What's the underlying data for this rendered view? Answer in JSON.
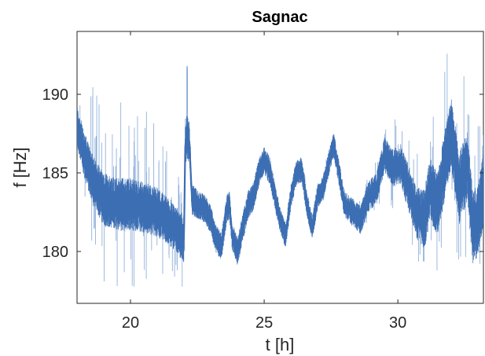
{
  "chart_data": {
    "type": "line",
    "title": "Sagnac",
    "xlabel": "t [h]",
    "ylabel": "f [Hz]",
    "xlim": [
      18,
      33.2
    ],
    "ylim": [
      176.7,
      194
    ],
    "xticks": [
      20,
      25,
      30
    ],
    "yticks": [
      180,
      185,
      190
    ],
    "grid": false,
    "series": [
      {
        "color": "#3c6eb3",
        "noise_color": "#7aa0d2",
        "x": [
          18.0,
          18.3,
          18.6,
          19.0,
          19.5,
          20.0,
          20.5,
          21.0,
          21.5,
          21.9,
          22.0,
          22.05,
          22.1,
          22.2,
          22.3,
          22.5,
          22.8,
          23.0,
          23.2,
          23.4,
          23.6,
          23.7,
          23.8,
          24.0,
          24.2,
          24.4,
          24.6,
          24.8,
          25.0,
          25.2,
          25.4,
          25.6,
          25.8,
          26.0,
          26.2,
          26.4,
          26.6,
          26.8,
          27.0,
          27.2,
          27.4,
          27.6,
          27.8,
          28.0,
          28.3,
          28.6,
          28.9,
          29.2,
          29.5,
          29.8,
          30.1,
          30.4,
          30.7,
          31.0,
          31.2,
          31.5,
          31.8,
          32.0,
          32.3,
          32.6,
          32.8,
          33.0,
          33.2
        ],
        "y": [
          188.0,
          186.0,
          184.5,
          183.3,
          183.0,
          183.0,
          182.8,
          182.5,
          181.8,
          181.0,
          180.8,
          187.0,
          187.2,
          187.0,
          183.3,
          183.0,
          182.7,
          182.0,
          180.8,
          180.3,
          182.7,
          183.0,
          181.0,
          180.0,
          181.5,
          183.0,
          183.5,
          185.0,
          185.8,
          185.2,
          183.5,
          182.0,
          181.0,
          183.5,
          185.0,
          185.2,
          183.0,
          181.5,
          183.5,
          184.0,
          185.5,
          186.8,
          185.0,
          183.0,
          182.5,
          182.0,
          183.5,
          184.0,
          186.2,
          185.3,
          185.6,
          184.0,
          182.5,
          182.0,
          184.0,
          183.0,
          186.0,
          187.5,
          184.0,
          185.5,
          181.5,
          182.0,
          184.0
        ],
        "noise_amp": [
          1.3,
          1.5,
          1.6,
          1.7,
          1.7,
          1.7,
          1.6,
          1.6,
          1.5,
          1.5,
          1.5,
          1.5,
          1.5,
          1.3,
          1.0,
          0.9,
          0.9,
          0.9,
          0.9,
          0.9,
          0.9,
          0.9,
          0.9,
          0.9,
          0.9,
          0.9,
          0.9,
          0.9,
          0.9,
          0.9,
          0.8,
          0.8,
          0.8,
          0.8,
          0.8,
          0.8,
          0.8,
          0.8,
          0.8,
          0.8,
          0.8,
          0.8,
          0.8,
          0.8,
          0.9,
          0.9,
          1.0,
          1.0,
          1.1,
          1.2,
          1.3,
          1.5,
          1.7,
          1.9,
          2.0,
          2.1,
          2.2,
          2.2,
          2.3,
          2.3,
          2.3,
          2.3,
          2.3
        ],
        "spike_amp": [
          5.0,
          5.5,
          6.0,
          6.5,
          7.0,
          7.0,
          6.5,
          6.0,
          5.0,
          4.0,
          4.0,
          6.5,
          6.0,
          5.5,
          1.0,
          1.0,
          1.0,
          1.0,
          1.0,
          1.0,
          1.0,
          1.0,
          1.0,
          1.0,
          1.0,
          1.0,
          1.0,
          1.0,
          1.0,
          1.0,
          1.0,
          1.0,
          1.0,
          1.0,
          1.0,
          1.0,
          1.0,
          1.0,
          1.0,
          1.0,
          1.0,
          1.0,
          1.0,
          1.0,
          1.0,
          1.5,
          2.0,
          2.5,
          3.0,
          3.5,
          4.0,
          4.5,
          5.0,
          5.5,
          6.0,
          6.0,
          6.5,
          6.5,
          7.0,
          7.0,
          6.5,
          6.0,
          5.5
        ]
      }
    ]
  }
}
